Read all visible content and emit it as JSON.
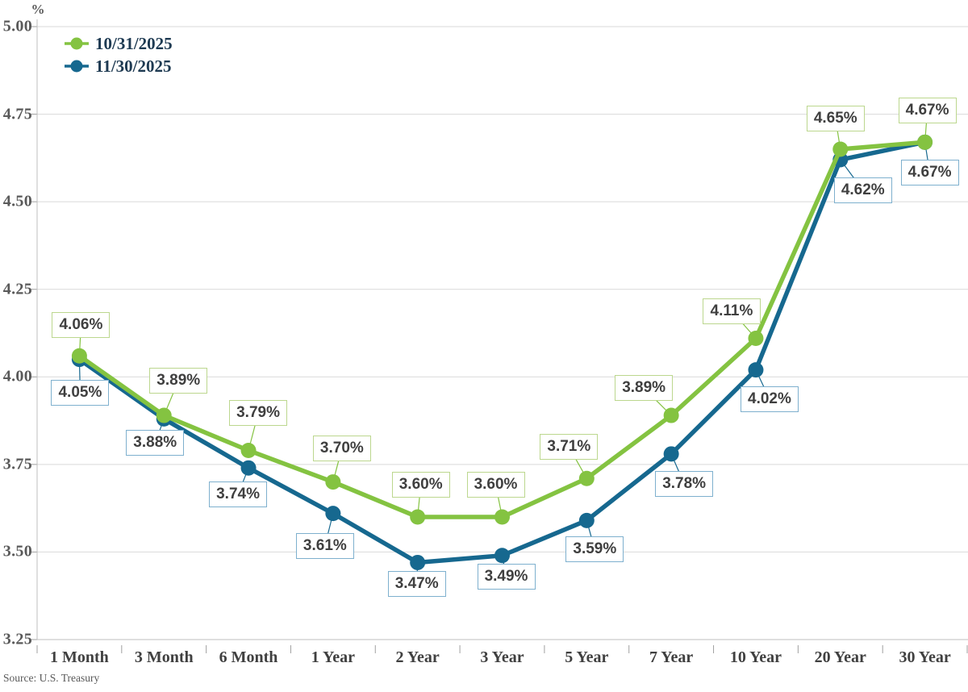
{
  "chart_data": {
    "type": "line",
    "title": "",
    "y_axis_title": "%",
    "source": "Source: U.S. Treasury",
    "categories": [
      "1 Month",
      "3 Month",
      "6 Month",
      "1 Year",
      "2 Year",
      "3 Year",
      "5 Year",
      "7 Year",
      "10 Year",
      "20 Year",
      "30 Year"
    ],
    "series": [
      {
        "name": "10/31/2025",
        "color": "#84C341",
        "label_border_color": "#BCD78E",
        "values": [
          4.06,
          3.89,
          3.79,
          3.7,
          3.6,
          3.6,
          3.71,
          3.89,
          4.11,
          4.65,
          4.67
        ],
        "labels": [
          "4.06%",
          "3.89%",
          "3.79%",
          "3.70%",
          "3.60%",
          "3.60%",
          "3.71%",
          "3.89%",
          "4.11%",
          "4.65%",
          "4.67%"
        ],
        "label_placement": "above",
        "label_offsets": [
          [
            2,
            -38
          ],
          [
            18,
            -43
          ],
          [
            12,
            -46
          ],
          [
            11,
            -42
          ],
          [
            4,
            -40
          ],
          [
            -8,
            -40
          ],
          [
            -22,
            -39
          ],
          [
            -34,
            -34
          ],
          [
            -30,
            -34
          ],
          [
            -6,
            -38
          ],
          [
            3,
            -39
          ]
        ]
      },
      {
        "name": "11/30/2025",
        "color": "#16688F",
        "label_border_color": "#7EB0CE",
        "values": [
          4.05,
          3.88,
          3.74,
          3.61,
          3.47,
          3.49,
          3.59,
          3.78,
          4.02,
          4.62,
          4.67
        ],
        "labels": [
          "4.05%",
          "3.88%",
          "3.74%",
          "3.61%",
          "3.47%",
          "3.49%",
          "3.59%",
          "3.78%",
          "4.02%",
          "4.62%",
          "4.67%"
        ],
        "label_placement": "below",
        "label_offsets": [
          [
            1,
            41
          ],
          [
            -11,
            30
          ],
          [
            -13,
            33
          ],
          [
            -10,
            40
          ],
          [
            -1,
            27
          ],
          [
            5,
            26
          ],
          [
            10,
            36
          ],
          [
            16,
            37
          ],
          [
            17,
            36
          ],
          [
            28,
            38
          ],
          [
            6,
            38
          ]
        ]
      }
    ],
    "ylim": [
      3.25,
      5.0
    ],
    "ytick_step": 0.25,
    "ytick_labels": [
      "5.00",
      "4.75",
      "4.50",
      "4.25",
      "4.00",
      "3.75",
      "3.50",
      "3.25"
    ],
    "grid": true,
    "legend_position": "top-left",
    "colors": {
      "grid": "#D9D9D9",
      "axis": "#BFBFBF",
      "tick": "#A0A0A0",
      "data_label_text": "#3F3F3F",
      "y_axis_label_text": "#595959",
      "category_label_text": "#404040",
      "legend_text": "#1E3A52"
    }
  }
}
